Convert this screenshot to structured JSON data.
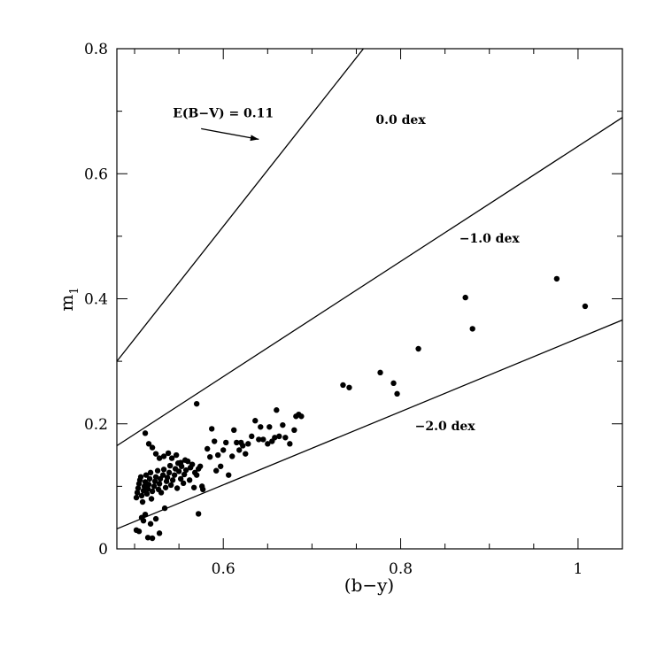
{
  "chart_data": {
    "type": "scatter",
    "title": "",
    "xlabel": "(b−y)",
    "ylabel_main": "m",
    "ylabel_sub": "1",
    "xlim": [
      0.48,
      1.05
    ],
    "ylim": [
      0.0,
      0.8
    ],
    "grid": false,
    "x_ticks": [
      {
        "value": 0.6,
        "label": "0.6"
      },
      {
        "value": 0.8,
        "label": "0.8"
      },
      {
        "value": 1.0,
        "label": "1"
      }
    ],
    "y_ticks": [
      {
        "value": 0.0,
        "label": "0"
      },
      {
        "value": 0.2,
        "label": "0.2"
      },
      {
        "value": 0.4,
        "label": "0.4"
      },
      {
        "value": 0.6,
        "label": "0.6"
      },
      {
        "value": 0.8,
        "label": "0.8"
      }
    ],
    "x_minor_step": 0.05,
    "y_minor_step": 0.1,
    "lines": [
      {
        "label": "0.0 dex",
        "points": [
          [
            0.48,
            0.3
          ],
          [
            0.758,
            0.8
          ]
        ]
      },
      {
        "label": "−1.0 dex",
        "points": [
          [
            0.48,
            0.165
          ],
          [
            1.05,
            0.69
          ]
        ]
      },
      {
        "label": "−2.0 dex",
        "points": [
          [
            0.48,
            0.032
          ],
          [
            1.05,
            0.366
          ]
        ]
      }
    ],
    "annotations": [
      {
        "text": "E(B−V) = 0.11",
        "x": 0.6,
        "y": 0.69
      },
      {
        "text": "0.0 dex",
        "x": 0.8,
        "y": 0.68
      },
      {
        "text": "−1.0 dex",
        "x": 0.9,
        "y": 0.49
      },
      {
        "text": "−2.0 dex",
        "x": 0.85,
        "y": 0.19
      }
    ],
    "reddening_arrow": {
      "from": [
        0.575,
        0.672
      ],
      "to": [
        0.64,
        0.655
      ]
    },
    "points": [
      [
        0.502,
        0.03
      ],
      [
        0.505,
        0.028
      ],
      [
        0.508,
        0.05
      ],
      [
        0.512,
        0.055
      ],
      [
        0.515,
        0.018
      ],
      [
        0.52,
        0.017
      ],
      [
        0.528,
        0.025
      ],
      [
        0.518,
        0.04
      ],
      [
        0.51,
        0.045
      ],
      [
        0.524,
        0.048
      ],
      [
        0.534,
        0.065
      ],
      [
        0.502,
        0.082
      ],
      [
        0.503,
        0.09
      ],
      [
        0.504,
        0.097
      ],
      [
        0.505,
        0.104
      ],
      [
        0.506,
        0.11
      ],
      [
        0.507,
        0.115
      ],
      [
        0.508,
        0.085
      ],
      [
        0.509,
        0.075
      ],
      [
        0.51,
        0.093
      ],
      [
        0.511,
        0.1
      ],
      [
        0.512,
        0.107
      ],
      [
        0.513,
        0.118
      ],
      [
        0.514,
        0.088
      ],
      [
        0.515,
        0.096
      ],
      [
        0.516,
        0.103
      ],
      [
        0.517,
        0.112
      ],
      [
        0.518,
        0.122
      ],
      [
        0.519,
        0.08
      ],
      [
        0.52,
        0.092
      ],
      [
        0.522,
        0.1
      ],
      [
        0.523,
        0.108
      ],
      [
        0.524,
        0.115
      ],
      [
        0.526,
        0.125
      ],
      [
        0.527,
        0.095
      ],
      [
        0.528,
        0.104
      ],
      [
        0.529,
        0.112
      ],
      [
        0.53,
        0.09
      ],
      [
        0.532,
        0.118
      ],
      [
        0.533,
        0.127
      ],
      [
        0.535,
        0.098
      ],
      [
        0.536,
        0.108
      ],
      [
        0.537,
        0.114
      ],
      [
        0.539,
        0.122
      ],
      [
        0.54,
        0.133
      ],
      [
        0.541,
        0.102
      ],
      [
        0.543,
        0.11
      ],
      [
        0.545,
        0.118
      ],
      [
        0.546,
        0.128
      ],
      [
        0.548,
        0.097
      ],
      [
        0.549,
        0.137
      ],
      [
        0.55,
        0.124
      ],
      [
        0.552,
        0.112
      ],
      [
        0.553,
        0.132
      ],
      [
        0.555,
        0.105
      ],
      [
        0.556,
        0.119
      ],
      [
        0.558,
        0.126
      ],
      [
        0.56,
        0.14
      ],
      [
        0.562,
        0.11
      ],
      [
        0.563,
        0.13
      ],
      [
        0.565,
        0.135
      ],
      [
        0.567,
        0.098
      ],
      [
        0.568,
        0.122
      ],
      [
        0.57,
        0.118
      ],
      [
        0.572,
        0.128
      ],
      [
        0.574,
        0.132
      ],
      [
        0.576,
        0.1
      ],
      [
        0.577,
        0.095
      ],
      [
        0.512,
        0.185
      ],
      [
        0.516,
        0.168
      ],
      [
        0.52,
        0.162
      ],
      [
        0.524,
        0.152
      ],
      [
        0.528,
        0.145
      ],
      [
        0.533,
        0.148
      ],
      [
        0.538,
        0.153
      ],
      [
        0.542,
        0.145
      ],
      [
        0.547,
        0.15
      ],
      [
        0.552,
        0.138
      ],
      [
        0.557,
        0.142
      ],
      [
        0.572,
        0.056
      ],
      [
        0.57,
        0.232
      ],
      [
        0.582,
        0.16
      ],
      [
        0.585,
        0.147
      ],
      [
        0.587,
        0.192
      ],
      [
        0.59,
        0.172
      ],
      [
        0.592,
        0.125
      ],
      [
        0.594,
        0.15
      ],
      [
        0.597,
        0.132
      ],
      [
        0.6,
        0.158
      ],
      [
        0.603,
        0.17
      ],
      [
        0.606,
        0.118
      ],
      [
        0.61,
        0.148
      ],
      [
        0.612,
        0.19
      ],
      [
        0.615,
        0.17
      ],
      [
        0.618,
        0.158
      ],
      [
        0.62,
        0.17
      ],
      [
        0.622,
        0.165
      ],
      [
        0.625,
        0.152
      ],
      [
        0.628,
        0.168
      ],
      [
        0.632,
        0.18
      ],
      [
        0.636,
        0.205
      ],
      [
        0.64,
        0.175
      ],
      [
        0.642,
        0.195
      ],
      [
        0.645,
        0.175
      ],
      [
        0.65,
        0.168
      ],
      [
        0.652,
        0.195
      ],
      [
        0.655,
        0.172
      ],
      [
        0.658,
        0.178
      ],
      [
        0.66,
        0.222
      ],
      [
        0.663,
        0.18
      ],
      [
        0.667,
        0.198
      ],
      [
        0.67,
        0.178
      ],
      [
        0.675,
        0.168
      ],
      [
        0.68,
        0.19
      ],
      [
        0.682,
        0.212
      ],
      [
        0.685,
        0.215
      ],
      [
        0.688,
        0.212
      ],
      [
        0.735,
        0.262
      ],
      [
        0.742,
        0.258
      ],
      [
        0.777,
        0.282
      ],
      [
        0.792,
        0.265
      ],
      [
        0.796,
        0.248
      ],
      [
        0.82,
        0.32
      ],
      [
        0.873,
        0.402
      ],
      [
        0.881,
        0.352
      ],
      [
        0.976,
        0.432
      ],
      [
        1.008,
        0.388
      ]
    ]
  }
}
